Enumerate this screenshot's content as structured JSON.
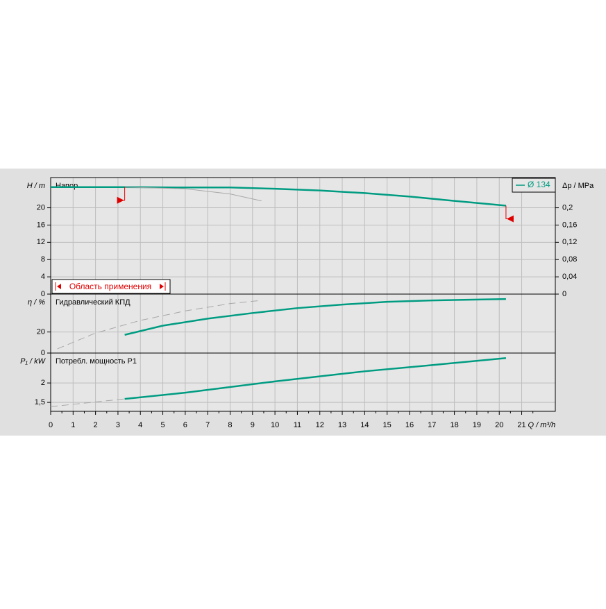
{
  "chart_data": [
    {
      "type": "line",
      "title": "Напор",
      "ylabel": "H / m",
      "y2label": "Δp / MPa",
      "xlim": [
        0,
        22.5
      ],
      "ylim": [
        0,
        27
      ],
      "yticks": [
        0,
        4,
        8,
        12,
        16,
        20
      ],
      "y2lim": [
        0,
        0.27
      ],
      "y2ticks": [
        0,
        {
          "value": 0.04,
          "label": "0,04"
        },
        {
          "value": 0.08,
          "label": "0,08"
        },
        {
          "value": 0.12,
          "label": "0,12"
        },
        {
          "value": 0.16,
          "label": "0,16"
        },
        {
          "value": 0.2,
          "label": "0,2"
        }
      ],
      "grid": true,
      "legend": "top-right",
      "series": [
        {
          "name": "Ø 134",
          "color": "#009c82",
          "x": [
            0,
            3.3,
            6,
            8,
            10,
            12,
            14,
            16,
            18,
            20.3
          ],
          "values": [
            24.8,
            24.8,
            24.7,
            24.7,
            24.4,
            24.0,
            23.4,
            22.6,
            21.6,
            20.5
          ]
        },
        {
          "color": "#a8a8a8",
          "x": [
            3.3,
            6,
            8,
            9.4
          ],
          "values": [
            24.8,
            24.4,
            23.2,
            21.6
          ]
        }
      ],
      "application_range": {
        "label": "Область применения",
        "x": [
          3.3,
          20.3
        ],
        "color": "#e00000"
      }
    },
    {
      "type": "line",
      "title": "Гидравлический КПД",
      "ylabel": "η / %",
      "xlim": [
        0,
        22.5
      ],
      "ylim": [
        0,
        56
      ],
      "yticks": [
        0,
        20
      ],
      "grid": true,
      "series": [
        {
          "color": "#009c82",
          "x": [
            3.3,
            5,
            7,
            9,
            11,
            13,
            15,
            17,
            20.3
          ],
          "values": [
            17.3,
            26,
            32.7,
            38,
            42.7,
            46,
            48.7,
            50,
            51.3
          ]
        },
        {
          "color": "#a8a8a8",
          "dashed": true,
          "x": [
            0.3,
            2,
            4,
            6,
            8,
            9.4
          ],
          "values": [
            4,
            19,
            31,
            40,
            47,
            50
          ]
        }
      ]
    },
    {
      "type": "line",
      "title": "Потребл. мощность P1",
      "ylabel": "P₁ / kW",
      "xlabel": "Q / m³/h",
      "xlim": [
        0,
        22.5
      ],
      "ylim": [
        1.27,
        2.77
      ],
      "yticks": [
        {
          "value": 1.5,
          "label": "1,5"
        },
        2
      ],
      "xticks": [
        0,
        1,
        2,
        3,
        4,
        5,
        6,
        7,
        8,
        9,
        10,
        11,
        12,
        13,
        14,
        15,
        16,
        17,
        18,
        19,
        20,
        21
      ],
      "grid": true,
      "series": [
        {
          "color": "#009c82",
          "x": [
            3.3,
            6,
            10,
            14,
            17,
            20.3
          ],
          "values": [
            1.59,
            1.75,
            2.04,
            2.3,
            2.46,
            2.64
          ]
        },
        {
          "color": "#a8a8a8",
          "dashed": true,
          "x": [
            0,
            3.3
          ],
          "values": [
            1.39,
            1.59
          ]
        }
      ]
    }
  ]
}
